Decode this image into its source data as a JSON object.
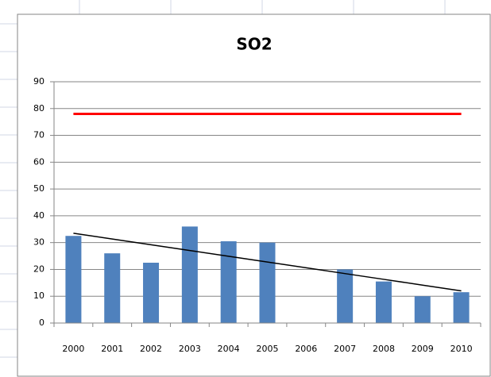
{
  "chart_data": {
    "type": "bar",
    "title": "SO2",
    "categories": [
      "2000",
      "2001",
      "2002",
      "2003",
      "2004",
      "2005",
      "2006",
      "2007",
      "2008",
      "2009",
      "2010"
    ],
    "series": [
      {
        "type": "bar",
        "color": "#4f81bd",
        "values": [
          32.5,
          26,
          22.5,
          36,
          30.5,
          30,
          null,
          20,
          15.5,
          10,
          11.5
        ]
      },
      {
        "type": "line",
        "color": "#ff0000",
        "values": [
          78,
          78,
          78,
          78,
          78,
          78,
          78,
          78,
          78,
          78,
          78
        ]
      },
      {
        "type": "line",
        "color": "#000000",
        "values": [
          33.5,
          31.35,
          29.2,
          27.05,
          24.9,
          22.75,
          20.6,
          18.45,
          16.3,
          14.15,
          12
        ]
      }
    ],
    "ylim": [
      0,
      90
    ],
    "yticks": [
      0,
      10,
      20,
      30,
      40,
      50,
      60,
      70,
      80,
      90
    ],
    "grid": true
  }
}
